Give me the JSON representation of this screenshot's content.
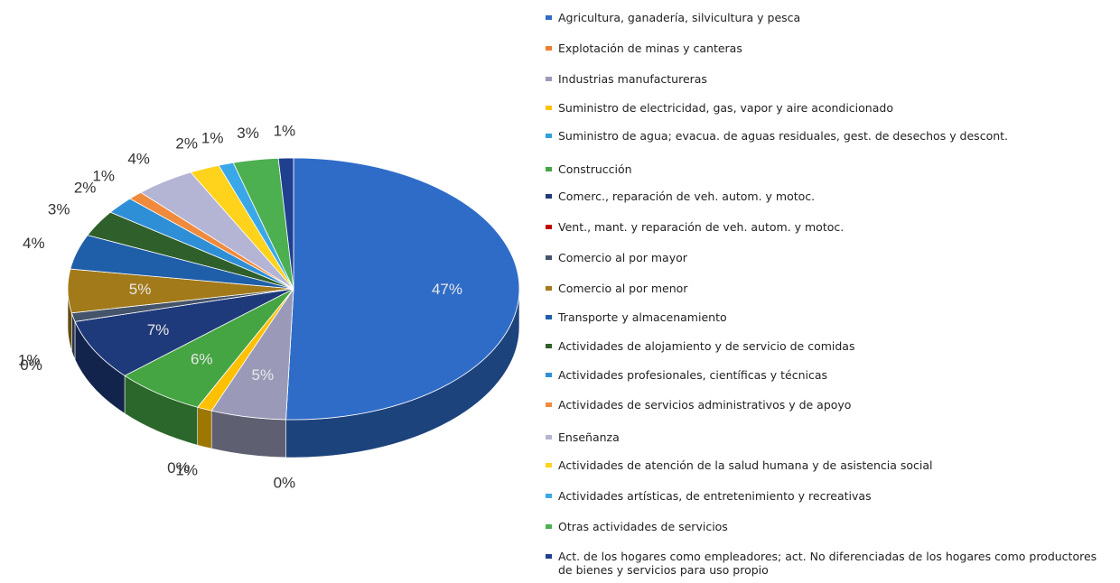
{
  "chart_data": {
    "type": "pie3d",
    "categories": [
      "Agricultura, ganadería, silvicultura y pesca",
      "Explotación de minas y canteras",
      "Industrias manufactureras",
      "Suministro de electricidad, gas, vapor y aire acondicionado",
      "Suministro de agua; evacua. de aguas residuales, gest. de  desechos y descont.",
      "Construcción",
      "Comerc., reparación de veh. autom. y motoc.",
      "Vent., mant. y reparación de veh. autom. y motoc.",
      "Comercio al por mayor",
      "Comercio al por menor",
      "Transporte y almacenamiento",
      "Actividades de alojamiento y de servicio de comidas",
      "Actividades profesionales, científicas y técnicas",
      "Actividades de servicios administrativos y de apoyo",
      "Enseñanza",
      "Actividades de atención de la salud humana y de asistencia social",
      "Actividades artísticas, de entretenimiento y recreativas",
      "Otras actividades de servicios",
      "Act. de los hogares como empleadores; act. No  diferenciadas de los hogares como productores de  bienes y servicios para uso propio"
    ],
    "values": [
      47,
      0,
      5,
      1,
      0,
      6,
      7,
      0,
      1,
      5,
      4,
      3,
      2,
      1,
      4,
      2,
      1,
      3,
      1
    ],
    "value_labels": [
      "47%",
      "0%",
      "5%",
      "1%",
      "0%",
      "6%",
      "7%",
      "0%",
      "1%",
      "5%",
      "4%",
      "3%",
      "2%",
      "1%",
      "4%",
      "2%",
      "1%",
      "3%",
      "1%"
    ],
    "colors": [
      "#2f6cc8",
      "#ed7d31",
      "#9a9ab8",
      "#ffc000",
      "#2ea0e0",
      "#45a543",
      "#1f3a7a",
      "#c00000",
      "#44546a",
      "#a27a1a",
      "#1f5ea8",
      "#2f5f2a",
      "#2f8fd6",
      "#f08a3c",
      "#b4b4d4",
      "#ffd21c",
      "#3aa8e8",
      "#4caf50",
      "#1f3f8f"
    ],
    "legend": "right"
  }
}
